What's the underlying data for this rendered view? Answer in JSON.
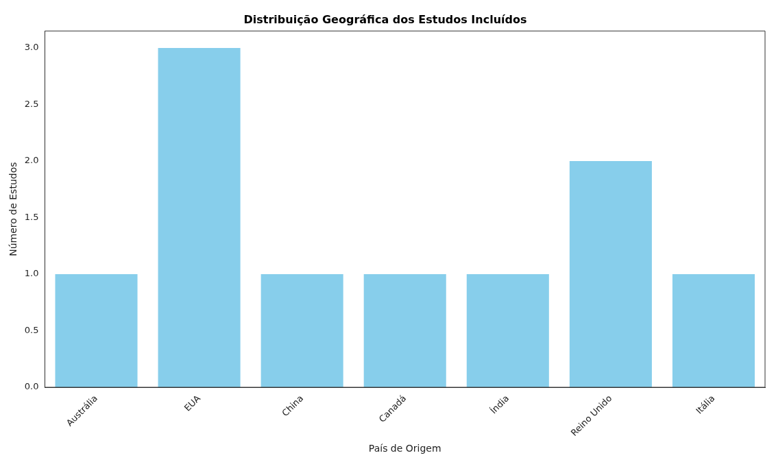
{
  "chart_data": {
    "type": "bar",
    "title": "Distribuição Geográfica dos Estudos Incluídos",
    "xlabel": "País de Origem",
    "ylabel": "Número de Estudos",
    "categories": [
      "Austrália",
      "EUA",
      "China",
      "Canadá",
      "Índia",
      "Reino Unido",
      "Itália"
    ],
    "values": [
      1,
      3,
      1,
      1,
      1,
      2,
      1
    ],
    "color": "#87ceeb",
    "ylim": [
      0,
      3.15
    ],
    "yticks": [
      {
        "value": 0,
        "label": "0.0"
      },
      {
        "value": 0.5,
        "label": "0.5"
      },
      {
        "value": 1,
        "label": "1.0"
      },
      {
        "value": 1.5,
        "label": "1.5"
      },
      {
        "value": 2,
        "label": "2.0"
      },
      {
        "value": 2.5,
        "label": "2.5"
      },
      {
        "value": 3,
        "label": "3.0"
      }
    ],
    "grid": false,
    "legend": false
  }
}
